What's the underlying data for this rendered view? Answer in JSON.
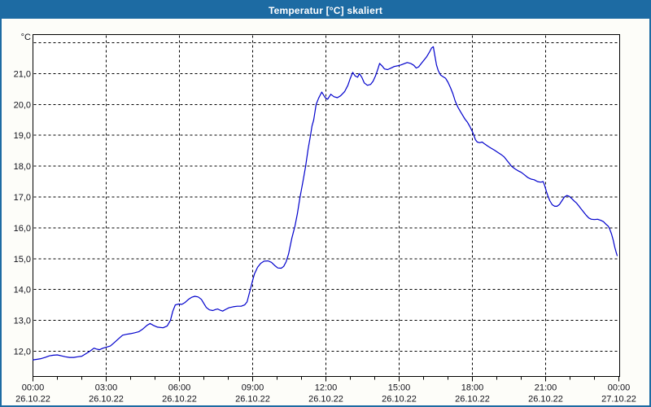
{
  "window": {
    "title": "Temperatur [°C] skaliert",
    "titlebar_color": "#1d6ba3",
    "border_color": "#1d6ba3",
    "background_color": "#fdfdf9"
  },
  "chart_data": {
    "type": "line",
    "title": "Temperatur [°C] skaliert",
    "unit_label": "°C",
    "grid": "dashed",
    "legend": "none",
    "line_color": "#0000cc",
    "plot_background": "#ffffff",
    "ylim": [
      11.2,
      22.3
    ],
    "xlim_hours": [
      0,
      24
    ],
    "y_gridline_values": [
      22,
      21,
      20,
      19,
      18,
      17,
      16,
      15,
      14,
      13,
      12
    ],
    "y_ticks": [
      {
        "value": 21,
        "label": "21,0"
      },
      {
        "value": 20,
        "label": "20,0"
      },
      {
        "value": 19,
        "label": "19,0"
      },
      {
        "value": 18,
        "label": "18,0"
      },
      {
        "value": 17,
        "label": "17,0"
      },
      {
        "value": 16,
        "label": "16,0"
      },
      {
        "value": 15,
        "label": "15,0"
      },
      {
        "value": 14,
        "label": "14,0"
      },
      {
        "value": 13,
        "label": "13,0"
      },
      {
        "value": 12,
        "label": "12,0"
      }
    ],
    "x_major_ticks": [
      {
        "hour": 0,
        "time": "00:00",
        "date": "26.10.22"
      },
      {
        "hour": 3,
        "time": "03:00",
        "date": "26.10.22"
      },
      {
        "hour": 6,
        "time": "06:00",
        "date": "26.10.22"
      },
      {
        "hour": 9,
        "time": "09:00",
        "date": "26.10.22"
      },
      {
        "hour": 12,
        "time": "12:00",
        "date": "26.10.22"
      },
      {
        "hour": 15,
        "time": "15:00",
        "date": "26.10.22"
      },
      {
        "hour": 18,
        "time": "18:00",
        "date": "26.10.22"
      },
      {
        "hour": 21,
        "time": "21:00",
        "date": "26.10.22"
      },
      {
        "hour": 24,
        "time": "00:00",
        "date": "27.10.22"
      }
    ],
    "x_minor_interval_hours": 1,
    "series": [
      {
        "name": "Temperatur",
        "points": [
          [
            0,
            11.72
          ],
          [
            0.17,
            11.74
          ],
          [
            0.33,
            11.76
          ],
          [
            0.5,
            11.8
          ],
          [
            0.67,
            11.85
          ],
          [
            0.83,
            11.87
          ],
          [
            1,
            11.88
          ],
          [
            1.17,
            11.85
          ],
          [
            1.33,
            11.82
          ],
          [
            1.5,
            11.8
          ],
          [
            1.67,
            11.8
          ],
          [
            1.83,
            11.82
          ],
          [
            2,
            11.84
          ],
          [
            2.17,
            11.92
          ],
          [
            2.33,
            12
          ],
          [
            2.5,
            12.1
          ],
          [
            2.6,
            12.07
          ],
          [
            2.73,
            12.05
          ],
          [
            2.87,
            12.1
          ],
          [
            3,
            12.13
          ],
          [
            3.17,
            12.17
          ],
          [
            3.33,
            12.28
          ],
          [
            3.5,
            12.4
          ],
          [
            3.67,
            12.52
          ],
          [
            3.83,
            12.55
          ],
          [
            4,
            12.57
          ],
          [
            4.17,
            12.6
          ],
          [
            4.33,
            12.63
          ],
          [
            4.5,
            12.72
          ],
          [
            4.67,
            12.84
          ],
          [
            4.8,
            12.9
          ],
          [
            4.93,
            12.84
          ],
          [
            5.1,
            12.78
          ],
          [
            5.33,
            12.76
          ],
          [
            5.5,
            12.82
          ],
          [
            5.63,
            13
          ],
          [
            5.73,
            13.3
          ],
          [
            5.83,
            13.5
          ],
          [
            5.97,
            13.53
          ],
          [
            6.1,
            13.52
          ],
          [
            6.23,
            13.58
          ],
          [
            6.37,
            13.68
          ],
          [
            6.5,
            13.75
          ],
          [
            6.63,
            13.78
          ],
          [
            6.77,
            13.76
          ],
          [
            6.9,
            13.68
          ],
          [
            7,
            13.55
          ],
          [
            7.1,
            13.42
          ],
          [
            7.23,
            13.34
          ],
          [
            7.37,
            13.32
          ],
          [
            7.47,
            13.35
          ],
          [
            7.57,
            13.37
          ],
          [
            7.67,
            13.33
          ],
          [
            7.77,
            13.3
          ],
          [
            7.9,
            13.36
          ],
          [
            8.03,
            13.41
          ],
          [
            8.2,
            13.44
          ],
          [
            8.37,
            13.46
          ],
          [
            8.53,
            13.46
          ],
          [
            8.67,
            13.5
          ],
          [
            8.77,
            13.6
          ],
          [
            8.87,
            13.9
          ],
          [
            9,
            14.3
          ],
          [
            9.07,
            14.5
          ],
          [
            9.2,
            14.72
          ],
          [
            9.33,
            14.85
          ],
          [
            9.47,
            14.92
          ],
          [
            9.63,
            14.93
          ],
          [
            9.77,
            14.88
          ],
          [
            9.9,
            14.78
          ],
          [
            10.03,
            14.7
          ],
          [
            10.17,
            14.69
          ],
          [
            10.27,
            14.75
          ],
          [
            10.37,
            14.9
          ],
          [
            10.47,
            15.15
          ],
          [
            10.6,
            15.65
          ],
          [
            10.73,
            16.05
          ],
          [
            10.83,
            16.45
          ],
          [
            10.93,
            16.95
          ],
          [
            11.07,
            17.55
          ],
          [
            11.17,
            18
          ],
          [
            11.27,
            18.55
          ],
          [
            11.37,
            19
          ],
          [
            11.43,
            19.3
          ],
          [
            11.5,
            19.5
          ],
          [
            11.6,
            20
          ],
          [
            11.7,
            20.2
          ],
          [
            11.83,
            20.4
          ],
          [
            11.97,
            20.22
          ],
          [
            12.07,
            20.17
          ],
          [
            12.2,
            20.33
          ],
          [
            12.33,
            20.25
          ],
          [
            12.47,
            20.22
          ],
          [
            12.6,
            20.28
          ],
          [
            12.77,
            20.42
          ],
          [
            12.9,
            20.62
          ],
          [
            13,
            20.85
          ],
          [
            13.1,
            21.04
          ],
          [
            13.2,
            20.92
          ],
          [
            13.3,
            20.88
          ],
          [
            13.37,
            21
          ],
          [
            13.47,
            20.88
          ],
          [
            13.57,
            20.7
          ],
          [
            13.7,
            20.62
          ],
          [
            13.83,
            20.65
          ],
          [
            13.93,
            20.75
          ],
          [
            14.03,
            20.92
          ],
          [
            14.13,
            21.15
          ],
          [
            14.2,
            21.33
          ],
          [
            14.3,
            21.25
          ],
          [
            14.4,
            21.15
          ],
          [
            14.53,
            21.13
          ],
          [
            14.67,
            21.18
          ],
          [
            14.8,
            21.23
          ],
          [
            14.93,
            21.25
          ],
          [
            15.07,
            21.28
          ],
          [
            15.2,
            21.32
          ],
          [
            15.33,
            21.36
          ],
          [
            15.47,
            21.33
          ],
          [
            15.6,
            21.27
          ],
          [
            15.7,
            21.18
          ],
          [
            15.8,
            21.22
          ],
          [
            15.9,
            21.32
          ],
          [
            16,
            21.42
          ],
          [
            16.13,
            21.55
          ],
          [
            16.23,
            21.68
          ],
          [
            16.33,
            21.83
          ],
          [
            16.4,
            21.87
          ],
          [
            16.47,
            21.55
          ],
          [
            16.53,
            21.28
          ],
          [
            16.6,
            21.1
          ],
          [
            16.7,
            20.95
          ],
          [
            16.8,
            20.9
          ],
          [
            16.9,
            20.85
          ],
          [
            17,
            20.72
          ],
          [
            17.1,
            20.55
          ],
          [
            17.2,
            20.35
          ],
          [
            17.3,
            20.1
          ],
          [
            17.4,
            19.92
          ],
          [
            17.5,
            19.78
          ],
          [
            17.6,
            19.65
          ],
          [
            17.7,
            19.52
          ],
          [
            17.8,
            19.42
          ],
          [
            17.9,
            19.28
          ],
          [
            18,
            19.12
          ],
          [
            18.07,
            18.98
          ],
          [
            18.13,
            18.85
          ],
          [
            18.2,
            18.78
          ],
          [
            18.3,
            18.76
          ],
          [
            18.4,
            18.78
          ],
          [
            18.5,
            18.72
          ],
          [
            18.63,
            18.65
          ],
          [
            18.77,
            18.58
          ],
          [
            18.9,
            18.52
          ],
          [
            19.03,
            18.45
          ],
          [
            19.17,
            18.38
          ],
          [
            19.3,
            18.3
          ],
          [
            19.4,
            18.2
          ],
          [
            19.5,
            18.1
          ],
          [
            19.6,
            18
          ],
          [
            19.73,
            17.92
          ],
          [
            19.87,
            17.85
          ],
          [
            20,
            17.8
          ],
          [
            20.13,
            17.72
          ],
          [
            20.27,
            17.63
          ],
          [
            20.4,
            17.58
          ],
          [
            20.53,
            17.56
          ],
          [
            20.67,
            17.5
          ],
          [
            20.8,
            17.48
          ],
          [
            20.9,
            17.5
          ],
          [
            20.97,
            17.35
          ],
          [
            21.03,
            17.18
          ],
          [
            21.1,
            17.02
          ],
          [
            21.17,
            16.88
          ],
          [
            21.27,
            16.75
          ],
          [
            21.37,
            16.7
          ],
          [
            21.47,
            16.7
          ],
          [
            21.57,
            16.76
          ],
          [
            21.67,
            16.88
          ],
          [
            21.77,
            17
          ],
          [
            21.87,
            17.05
          ],
          [
            21.97,
            17.02
          ],
          [
            22.07,
            16.95
          ],
          [
            22.17,
            16.87
          ],
          [
            22.27,
            16.8
          ],
          [
            22.37,
            16.7
          ],
          [
            22.47,
            16.6
          ],
          [
            22.57,
            16.5
          ],
          [
            22.67,
            16.4
          ],
          [
            22.77,
            16.32
          ],
          [
            22.87,
            16.28
          ],
          [
            23,
            16.27
          ],
          [
            23.13,
            16.28
          ],
          [
            23.27,
            16.24
          ],
          [
            23.37,
            16.2
          ],
          [
            23.47,
            16.12
          ],
          [
            23.57,
            16.05
          ],
          [
            23.63,
            15.95
          ],
          [
            23.7,
            15.8
          ],
          [
            23.77,
            15.6
          ],
          [
            23.83,
            15.38
          ],
          [
            23.9,
            15.18
          ],
          [
            23.93,
            15.1
          ]
        ]
      }
    ]
  }
}
